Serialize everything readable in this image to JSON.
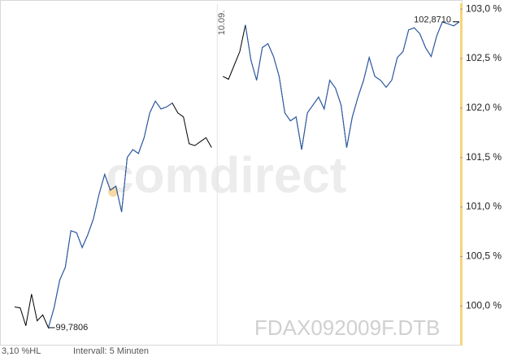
{
  "chart_data": {
    "type": "line",
    "watermark": "comdirect",
    "symbol": "FDAX092009F.DTB",
    "range_note": "3,10 %HL",
    "interval_note": "Intervall: 5 Minuten",
    "day_label": "10.09.",
    "day_break_index": 36,
    "max_label": "102,8710",
    "max_index": 79,
    "max_value": 102.871,
    "min_label": "99,7806",
    "min_index": 6,
    "min_value": 99.7806,
    "ylim": [
      99.6,
      103.05
    ],
    "yticks": [
      {
        "value": 100,
        "label": "100,0 %"
      },
      {
        "value": 100.5,
        "label": "100,5 %"
      },
      {
        "value": 101,
        "label": "101,0 %"
      },
      {
        "value": 101.5,
        "label": "101,5 %"
      },
      {
        "value": 102,
        "label": "102,0 %"
      },
      {
        "value": 102.5,
        "label": "102,5 %"
      },
      {
        "value": 103,
        "label": "103,0 %"
      }
    ],
    "grid": false,
    "series": [
      {
        "color": "#000000",
        "values": [
          99.99,
          99.98,
          99.8,
          100.12,
          99.85,
          99.91,
          99.78,
          99.98,
          100.26,
          100.39,
          100.76,
          100.74,
          100.59,
          100.72,
          100.88,
          101.13,
          101.33,
          101.17,
          101.21,
          100.95,
          101.5,
          101.58,
          101.54,
          101.7,
          101.95,
          102.07,
          101.99,
          102.01,
          102.05,
          101.95,
          101.91,
          101.64,
          101.62,
          101.66,
          101.7,
          101.6,
          null,
          102.32,
          102.29,
          102.43,
          102.57,
          102.84,
          102.48,
          102.28,
          102.61,
          102.65,
          102.52,
          102.32,
          101.95,
          101.87,
          101.91,
          101.58,
          101.95,
          102.03,
          102.11,
          101.99,
          102.28,
          102.2,
          102.03,
          101.6,
          101.91,
          102.11,
          102.28,
          102.51,
          102.32,
          102.28,
          102.21,
          102.28,
          102.51,
          102.57,
          102.79,
          102.81,
          102.75,
          102.61,
          102.52,
          102.73,
          102.87,
          102.85,
          102.83,
          102.87
        ]
      },
      {
        "color": "#2b5fb4",
        "values": [
          null,
          null,
          null,
          null,
          null,
          null,
          99.78,
          99.98,
          100.26,
          100.39,
          100.76,
          100.74,
          100.59,
          100.72,
          100.88,
          101.13,
          101.33,
          101.17,
          101.21,
          100.95,
          101.5,
          101.58,
          101.54,
          101.7,
          101.95,
          102.07,
          101.99,
          102.01,
          102.05,
          null,
          null,
          null,
          null,
          null,
          null,
          null,
          null,
          null,
          null,
          null,
          null,
          102.84,
          102.48,
          102.28,
          102.61,
          102.65,
          102.52,
          102.32,
          101.95,
          101.87,
          101.91,
          101.58,
          101.95,
          102.03,
          102.11,
          101.99,
          102.28,
          102.2,
          102.03,
          101.6,
          101.91,
          102.11,
          102.28,
          102.51,
          102.32,
          102.28,
          102.21,
          102.28,
          102.51,
          102.57,
          102.79,
          102.81,
          102.75,
          102.61,
          102.52,
          102.73,
          102.87,
          102.85,
          102.83,
          102.87
        ]
      }
    ]
  }
}
